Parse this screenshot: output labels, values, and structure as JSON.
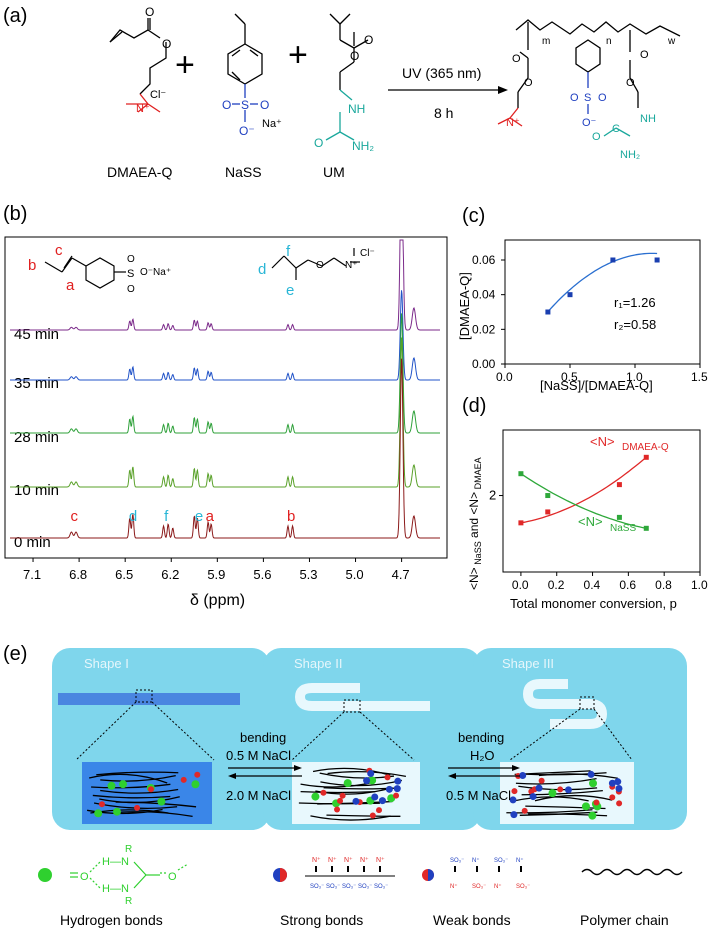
{
  "panel_labels": {
    "a": "(a)",
    "b": "(b)",
    "c": "(c)",
    "d": "(d)",
    "e": "(e)"
  },
  "panel_a": {
    "monomers": [
      "DMAEA-Q",
      "NaSS",
      "UM"
    ],
    "plus": "+",
    "condition_top": "UV (365 nm)",
    "condition_bottom": "8 h",
    "chem": {
      "cl": "Cl⁻",
      "n_plus": "N⁺",
      "na_plus": "Na⁺",
      "o_minus": "O⁻",
      "o": "O",
      "s": "S",
      "nh": "NH",
      "nh2": "NH₂",
      "c": "C",
      "m": "m",
      "n": "n",
      "w": "w"
    }
  },
  "panel_b": {
    "times": [
      "45 min",
      "35 min",
      "28 min",
      "10 min",
      "0 min"
    ],
    "trace_colors": [
      "#7b2a8a",
      "#2153c8",
      "#2fa13a",
      "#5aa12a",
      "#8b1a1a"
    ],
    "xlabel": "δ  (ppm)",
    "ticks": [
      "7.1",
      "6.8",
      "6.5",
      "6.2",
      "5.9",
      "5.6",
      "5.3",
      "5.0",
      "4.7"
    ],
    "tick_values": [
      7.1,
      6.8,
      6.5,
      6.2,
      5.9,
      5.6,
      5.3,
      5.0,
      4.7
    ],
    "xlim": [
      7.25,
      4.45
    ],
    "peak_labels": [
      {
        "text": "c",
        "ppm": 6.83,
        "color": "#e02020"
      },
      {
        "text": "d",
        "ppm": 6.45,
        "color": "#29b6d6"
      },
      {
        "text": "f",
        "ppm": 6.22,
        "color": "#29b6d6"
      },
      {
        "text": "e",
        "ppm": 6.02,
        "color": "#29b6d6"
      },
      {
        "text": "a",
        "ppm": 5.95,
        "color": "#e02020"
      },
      {
        "text": "b",
        "ppm": 5.42,
        "color": "#e02020"
      }
    ],
    "struct1_labels": {
      "c": "c",
      "b": "b",
      "a": "a",
      "so": "S",
      "o": "O",
      "na": "O⁻Na⁺"
    },
    "struct2_labels": {
      "d": "d",
      "f": "f",
      "e": "e",
      "n": "N⁺",
      "cl": "Cl⁻",
      "o": "O"
    }
  },
  "chart_data": [
    {
      "type": "scatter",
      "panel": "c",
      "xlabel": "[NaSS]/[DMAEA-Q]",
      "ylabel": "[DMAEA-Q]",
      "xlim": [
        0.0,
        1.5
      ],
      "ylim": [
        0.0,
        0.06
      ],
      "xticks": [
        "0.0",
        "0.5",
        "1.0",
        "1.5"
      ],
      "yticks": [
        "0.00",
        "0.02",
        "0.04",
        "0.06"
      ],
      "x": [
        0.33,
        0.5,
        0.83,
        1.17
      ],
      "y": [
        0.03,
        0.04,
        0.06,
        0.06
      ],
      "annotations": [
        "r₁=1.26",
        "r₂=0.58"
      ],
      "point_color": "#1a3fb0",
      "fit_color": "#2a6fd0"
    },
    {
      "type": "line",
      "panel": "d",
      "xlabel": "Total monomer conversion, p",
      "ylabel": "<N>",
      "ylabel_parts": [
        "<N>",
        "NaSS",
        " and <N>",
        "DMAEA"
      ],
      "xlim": [
        -0.1,
        1.0
      ],
      "ylim": [
        0.6,
        3.2
      ],
      "xticks": [
        "0.0",
        "0.2",
        "0.4",
        "0.6",
        "0.8",
        "1.0"
      ],
      "yticks": [
        "2"
      ],
      "series": [
        {
          "name": "<N> DMAEA-Q",
          "color": "#e02828",
          "x": [
            0.0,
            0.15,
            0.55,
            0.7
          ],
          "y": [
            1.5,
            1.7,
            2.2,
            2.7
          ]
        },
        {
          "name": "<N> NaSS",
          "color": "#2ea83a",
          "x": [
            0.0,
            0.15,
            0.55,
            0.7
          ],
          "y": [
            2.4,
            2.0,
            1.6,
            1.4
          ]
        }
      ],
      "legend_parts": {
        "dmaea_main": "<N>",
        "dmaea_sub": "DMAEA-Q",
        "nass_main": "<N>",
        "nass_sub": "NaSS"
      }
    }
  ],
  "panel_e": {
    "shapes": [
      "Shape I",
      "Shape II",
      "Shape III"
    ],
    "arrow1_top": [
      "bending",
      "0.5 M NaCl"
    ],
    "arrow1_bottom": "2.0 M NaCl",
    "arrow2_top": [
      "bending",
      "H₂O"
    ],
    "arrow2_bottom": "0.5 M NaCl",
    "legend": [
      "Hydrogen bonds",
      "Strong bonds",
      "Weak bonds",
      "Polymer chain"
    ],
    "legend_chem": {
      "r": "R",
      "nh": "N—H",
      "hn": "H—N",
      "o": "O",
      "n_plus": "N⁺",
      "so3": "SO₃⁻"
    },
    "colors": {
      "panel_bg": "#7fd6ec",
      "panel_bg_inner": "#c9eef8",
      "bar": "#4a86e0",
      "network_bg": "#2f7fe8",
      "green": "#2fd02f",
      "red": "#e02828",
      "blue": "#2040c0"
    }
  }
}
